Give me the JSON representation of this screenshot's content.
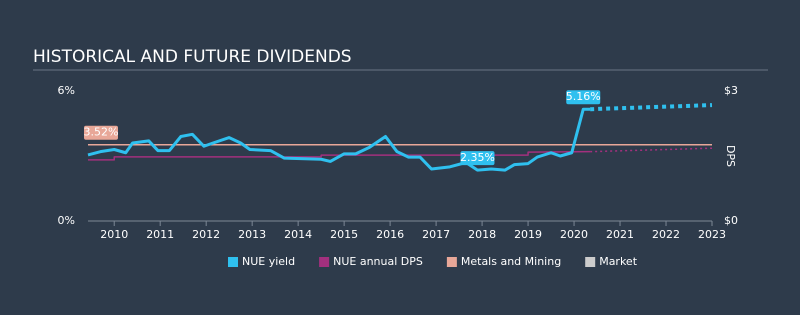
{
  "chart_data": {
    "type": "line",
    "title": "HISTORICAL AND FUTURE DIVIDENDS",
    "y2_label": "DPS",
    "xlim": [
      2009.43,
      2023
    ],
    "xticks": [
      2010,
      2011,
      2012,
      2013,
      2014,
      2015,
      2016,
      2017,
      2018,
      2019,
      2020,
      2021,
      2022,
      2023
    ],
    "ylim": [
      0,
      6
    ],
    "yticks": [
      {
        "value": 0,
        "label": "0%"
      },
      {
        "value": 6,
        "label": "6%"
      }
    ],
    "y2lim": [
      0,
      3
    ],
    "y2ticks": [
      {
        "value": 0,
        "label": "$0"
      },
      {
        "value": 3,
        "label": "$3"
      }
    ],
    "series": [
      {
        "name": "NUE yield",
        "color": "#2fc0ef",
        "x": [
          2009.43,
          2009.7,
          2010.0,
          2010.25,
          2010.4,
          2010.75,
          2010.95,
          2011.2,
          2011.45,
          2011.7,
          2011.95,
          2012.15,
          2012.5,
          2012.75,
          2012.95,
          2013.4,
          2013.7,
          2014.5,
          2014.7,
          2015.0,
          2015.25,
          2015.55,
          2015.9,
          2016.15,
          2016.4,
          2016.65,
          2016.9,
          2017.3,
          2017.65,
          2017.9,
          2018.2,
          2018.5,
          2018.7,
          2019.0,
          2019.2,
          2019.5,
          2019.7,
          2019.95,
          2020.2,
          2020.35
        ],
        "values": [
          3.05,
          3.2,
          3.3,
          3.15,
          3.6,
          3.7,
          3.25,
          3.25,
          3.9,
          4.0,
          3.45,
          3.6,
          3.85,
          3.6,
          3.3,
          3.25,
          2.9,
          2.85,
          2.75,
          3.1,
          3.1,
          3.4,
          3.9,
          3.2,
          2.95,
          2.95,
          2.4,
          2.5,
          2.7,
          2.35,
          2.4,
          2.35,
          2.6,
          2.65,
          2.95,
          3.15,
          3.0,
          3.15,
          5.16,
          5.16
        ],
        "forecast": {
          "x": [
            2020.35,
            2023
          ],
          "values": [
            5.16,
            5.35
          ]
        }
      },
      {
        "name": "NUE annual DPS",
        "color": "#a3307e",
        "axis": "y2",
        "x": [
          2009.43,
          2010.0,
          2010.0,
          2014.5,
          2014.5,
          2019.0,
          2019.0,
          2020.35
        ],
        "values": [
          1.41,
          1.41,
          1.48,
          1.48,
          1.52,
          1.52,
          1.59,
          1.6
        ],
        "forecast": {
          "x": [
            2020.35,
            2023
          ],
          "values": [
            1.6,
            1.68
          ]
        }
      },
      {
        "name": "Metals and Mining",
        "color": "#e8a798",
        "x": [
          2009.43,
          2023
        ],
        "values": [
          3.52,
          3.52
        ]
      },
      {
        "name": "Market",
        "color": "#cccccc",
        "x": [
          2009.43,
          2023
        ],
        "values": [
          null,
          null
        ]
      }
    ],
    "annotations": [
      {
        "x": 2020.2,
        "value": 5.16,
        "label": "5.16%",
        "color": "#2fc0ef"
      },
      {
        "x": 2017.9,
        "value": 2.35,
        "label": "2.35%",
        "color": "#2fc0ef"
      },
      {
        "x": 2009.43,
        "value": 3.52,
        "label": "3.52%",
        "color": "#e8a798"
      }
    ]
  }
}
